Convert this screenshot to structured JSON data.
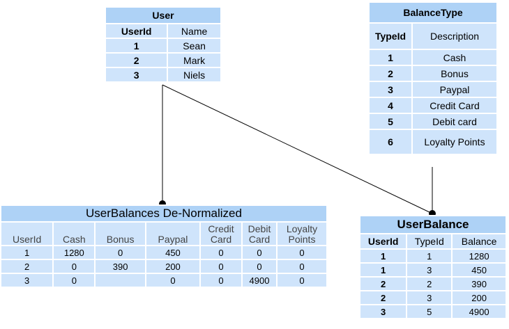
{
  "user": {
    "title": "User",
    "headers": [
      "UserId",
      "Name"
    ],
    "rows": [
      [
        "1",
        "Sean"
      ],
      [
        "2",
        "Mark"
      ],
      [
        "3",
        "Niels"
      ]
    ]
  },
  "balance_type": {
    "title": "BalanceType",
    "headers": [
      "TypeId",
      "Description"
    ],
    "rows": [
      [
        "1",
        "Cash"
      ],
      [
        "2",
        "Bonus"
      ],
      [
        "3",
        "Paypal"
      ],
      [
        "4",
        "Credit Card"
      ],
      [
        "5",
        "Debit card"
      ],
      [
        "6",
        "Loyalty Points"
      ]
    ]
  },
  "denormalized": {
    "title": "UserBalances De-Normalized",
    "headers": [
      "UserId",
      "Cash",
      "Bonus",
      "Paypal",
      "Credit Card",
      "Debit Card",
      "Loyalty Points"
    ],
    "rows": [
      [
        "1",
        "1280",
        "0",
        "450",
        "0",
        "0",
        "0"
      ],
      [
        "2",
        "0",
        "390",
        "200",
        "0",
        "0",
        "0"
      ],
      [
        "3",
        "0",
        "",
        "0",
        "0",
        "4900",
        "0"
      ]
    ]
  },
  "user_balance": {
    "title": "UserBalance",
    "headers": [
      "UserId",
      "TypeId",
      "Balance"
    ],
    "rows": [
      [
        "1",
        "1",
        "1280"
      ],
      [
        "1",
        "3",
        "450"
      ],
      [
        "2",
        "2",
        "390"
      ],
      [
        "2",
        "3",
        "200"
      ],
      [
        "3",
        "5",
        "4900"
      ]
    ]
  },
  "colors": {
    "cell": "#cfe4fb",
    "title": "#aed2f6",
    "line": "#000000"
  }
}
